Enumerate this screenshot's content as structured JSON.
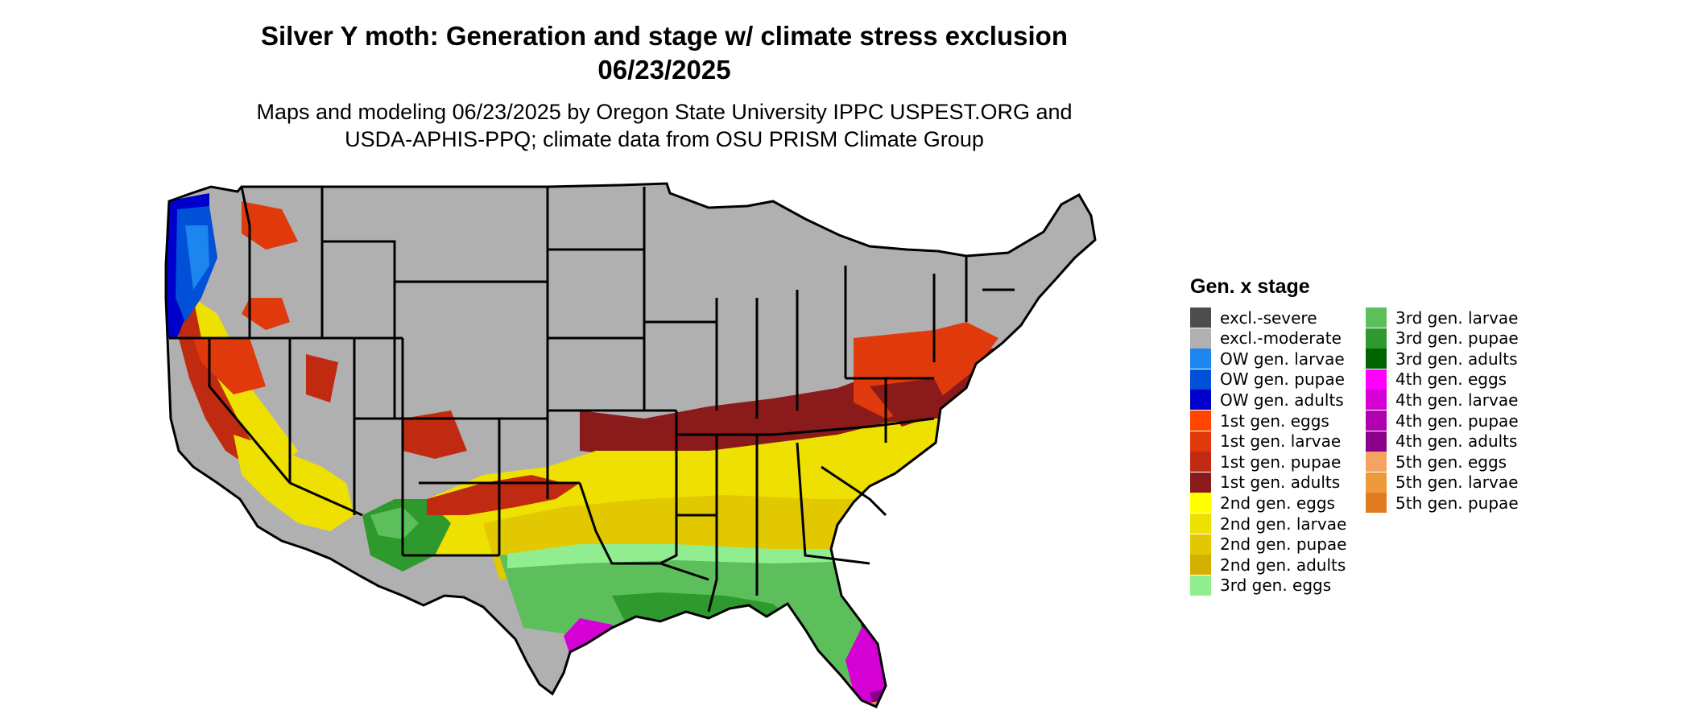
{
  "title": {
    "line1": "Silver Y moth: Generation and stage w/ climate stress exclusion",
    "line2": "06/23/2025"
  },
  "subtitle": {
    "line1": "Maps and modeling 06/23/2025 by Oregon State University IPPC USPEST.ORG and",
    "line2": "USDA-APHIS-PPQ; climate data from OSU PRISM Climate Group"
  },
  "legend": {
    "title": "Gen. x stage",
    "items": [
      {
        "label": "excl.-severe",
        "color": "#4d4d4d"
      },
      {
        "label": "excl.-moderate",
        "color": "#b0b0b0"
      },
      {
        "label": "OW gen. larvae",
        "color": "#1c86ee"
      },
      {
        "label": "OW gen. pupae",
        "color": "#0050d8"
      },
      {
        "label": "OW gen. adults",
        "color": "#0000cd"
      },
      {
        "label": "1st gen. eggs",
        "color": "#ff4500"
      },
      {
        "label": "1st gen. larvae",
        "color": "#e0390b"
      },
      {
        "label": "1st gen. pupae",
        "color": "#c02a10"
      },
      {
        "label": "1st gen. adults",
        "color": "#8b1a1a"
      },
      {
        "label": "2nd gen. eggs",
        "color": "#ffff00"
      },
      {
        "label": "2nd gen. larvae",
        "color": "#eee000"
      },
      {
        "label": "2nd gen. pupae",
        "color": "#e2c800"
      },
      {
        "label": "2nd gen. adults",
        "color": "#d4b000"
      },
      {
        "label": "3rd gen. eggs",
        "color": "#90ee90"
      },
      {
        "label": "3rd gen. larvae",
        "color": "#5cbf5c"
      },
      {
        "label": "3rd gen. pupae",
        "color": "#2e9a2e"
      },
      {
        "label": "3rd gen. adults",
        "color": "#006400"
      },
      {
        "label": "4th gen. eggs",
        "color": "#ff00ff"
      },
      {
        "label": "4th gen. larvae",
        "color": "#d400d4"
      },
      {
        "label": "4th gen. pupae",
        "color": "#b000b0"
      },
      {
        "label": "4th gen. adults",
        "color": "#8b008b"
      },
      {
        "label": "5th gen. eggs",
        "color": "#f4a460"
      },
      {
        "label": "5th gen. larvae",
        "color": "#ee9a3a"
      },
      {
        "label": "5th gen. pupae",
        "color": "#e07b20"
      }
    ]
  }
}
